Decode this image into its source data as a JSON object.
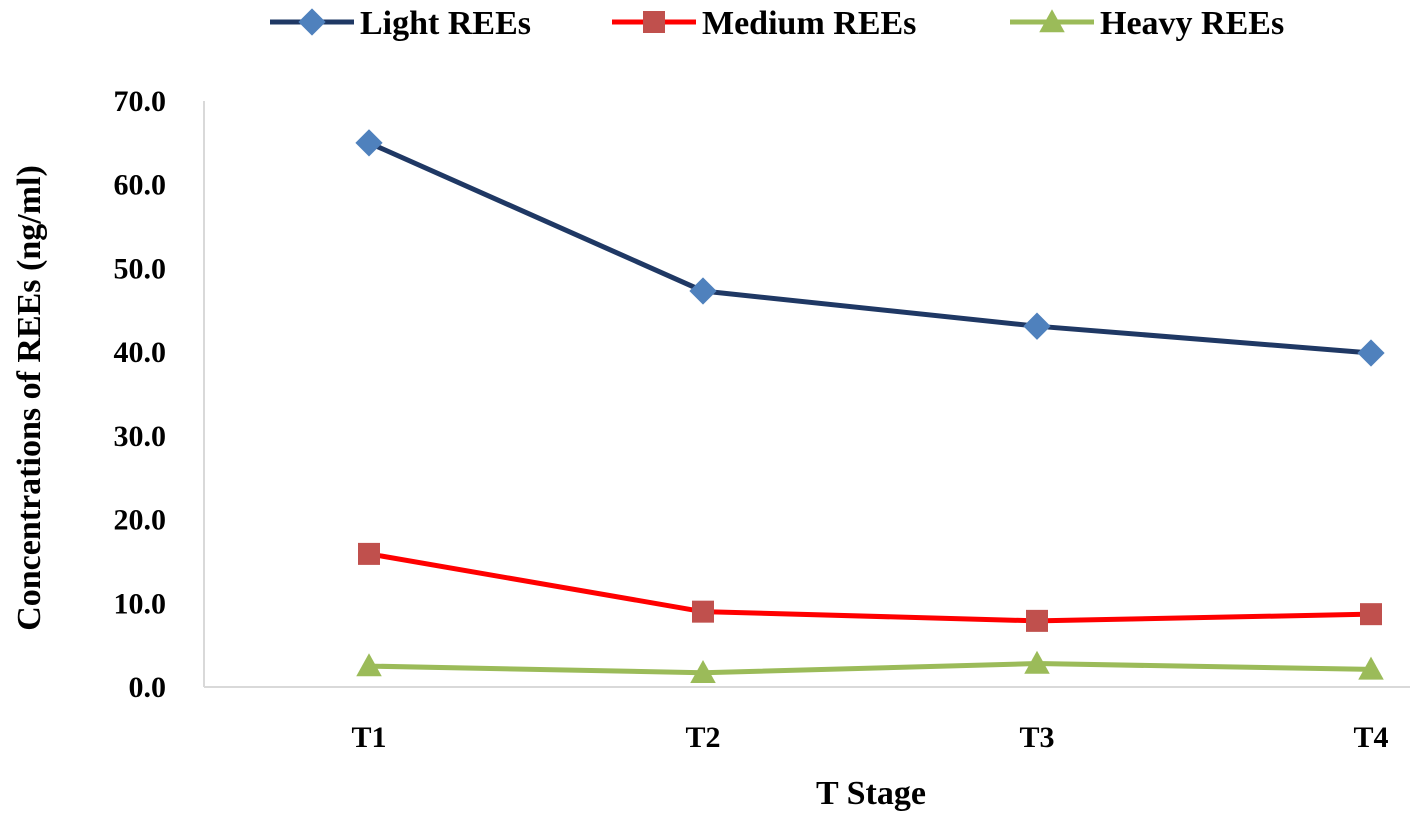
{
  "chart_data": {
    "type": "line",
    "title": "",
    "xlabel": "T Stage",
    "ylabel": "Concentrations  of REEs  (ng/ml)",
    "categories": [
      "T1",
      "T2",
      "T3",
      "T4"
    ],
    "ylim": [
      0,
      70
    ],
    "yticks": [
      "0.0",
      "10.0",
      "20.0",
      "30.0",
      "40.0",
      "50.0",
      "60.0",
      "70.0"
    ],
    "grid": false,
    "legend_position": "top",
    "series": [
      {
        "name": "Light REEs",
        "values": [
          65.0,
          47.3,
          43.1,
          39.9
        ],
        "line_color": "#1f3864",
        "marker_color": "#4f81bd",
        "marker": "diamond"
      },
      {
        "name": "Medium REEs",
        "values": [
          15.9,
          9.0,
          7.9,
          8.7
        ],
        "line_color": "#ff0000",
        "marker_color": "#c0504d",
        "marker": "square"
      },
      {
        "name": "Heavy REEs",
        "values": [
          2.5,
          1.7,
          2.8,
          2.1
        ],
        "line_color": "#9bbb59",
        "marker_color": "#9bbb59",
        "marker": "triangle"
      }
    ]
  }
}
